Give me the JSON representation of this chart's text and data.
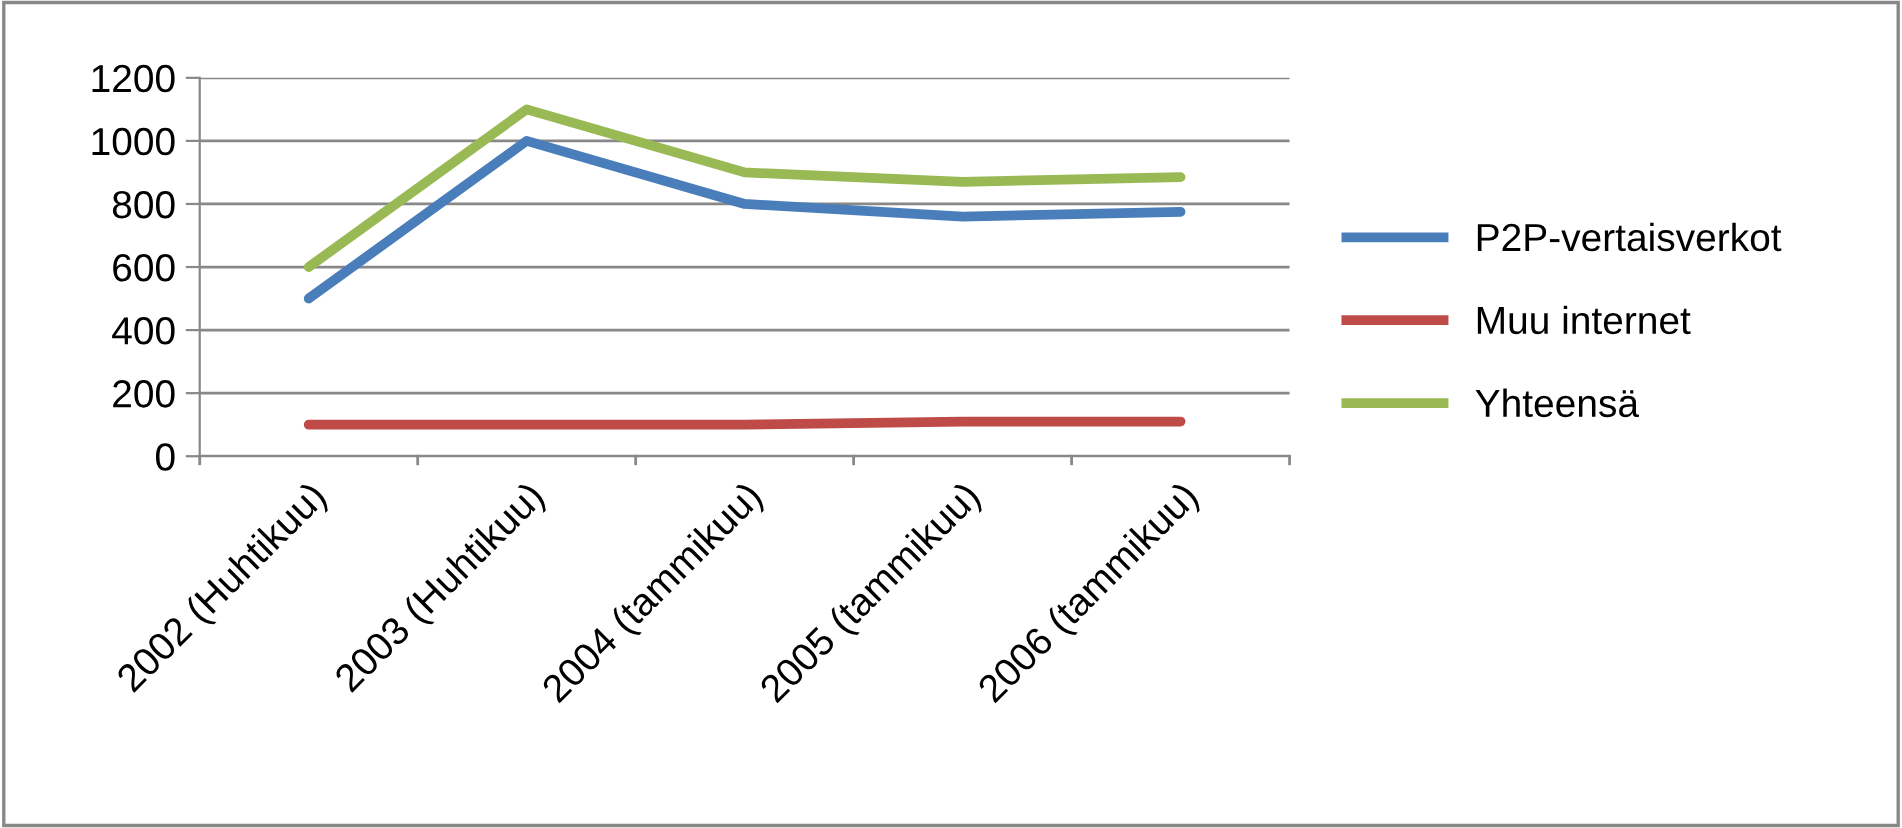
{
  "chart_data": {
    "type": "line",
    "categories": [
      "2002 (Huhtikuu)",
      "2003 (Huhtikuu)",
      "2004 (tammikuu)",
      "2005 (tammikuu)",
      "2006 (tammikuu)"
    ],
    "series": [
      {
        "name": "P2P-vertaisverkot",
        "color": "#4a7ebb",
        "values": [
          500,
          1000,
          800,
          760,
          775
        ]
      },
      {
        "name": "Muu internet",
        "color": "#be4b48",
        "values": [
          100,
          100,
          100,
          110,
          110
        ]
      },
      {
        "name": "Yhteensä",
        "color": "#98b954",
        "values": [
          600,
          1100,
          900,
          870,
          885
        ]
      }
    ],
    "ylim": [
      0,
      1200
    ],
    "yticks": [
      0,
      200,
      400,
      600,
      800,
      1000,
      1200
    ],
    "grid": "y",
    "legend": "right",
    "marker": "none",
    "line_style": "solid"
  }
}
